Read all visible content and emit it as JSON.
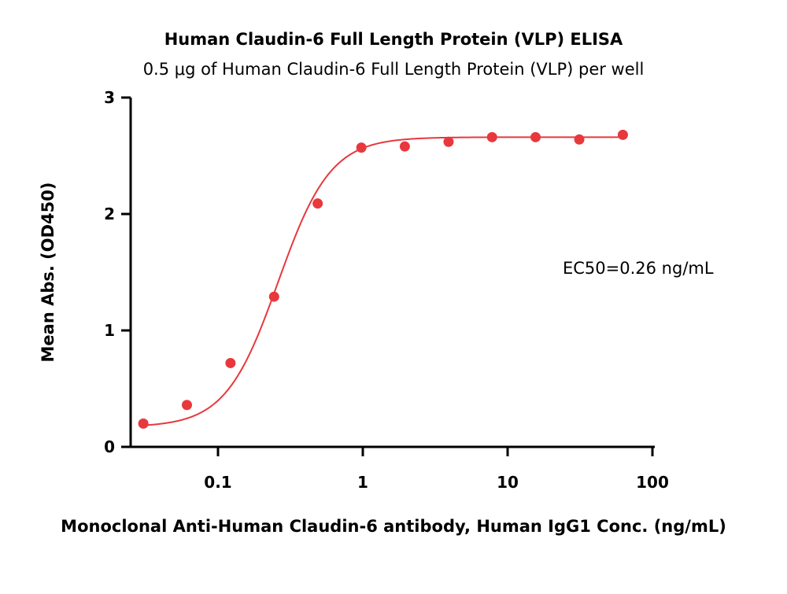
{
  "chart_data": {
    "type": "scatter",
    "title": "Human Claudin-6 Full Length Protein (VLP) ELISA",
    "subtitle": "0.5 μg of Human Claudin-6 Full Length Protein (VLP) per well",
    "xlabel": "Monoclonal Anti-Human Claudin-6 antibody, Human IgG1 Conc. (ng/mL)",
    "ylabel": "Mean Abs. (OD450)",
    "x_scale": "log",
    "xlim": [
      0.03,
      100
    ],
    "ylim": [
      0,
      3
    ],
    "x_ticks": [
      0.1,
      1,
      10,
      100
    ],
    "x_tick_labels": [
      "0.1",
      "1",
      "10",
      "100"
    ],
    "y_ticks": [
      0,
      1,
      2,
      3
    ],
    "y_tick_labels": [
      "0",
      "1",
      "2",
      "3"
    ],
    "grid": false,
    "color": "#e8383d",
    "series": [
      {
        "x": [
          0.0305,
          0.061,
          0.122,
          0.244,
          0.488,
          0.977,
          1.95,
          3.91,
          7.81,
          15.6,
          31.25,
          62.5
        ],
        "y": [
          0.2,
          0.36,
          0.72,
          1.29,
          2.09,
          2.57,
          2.58,
          2.62,
          2.66,
          2.66,
          2.64,
          2.68
        ]
      }
    ],
    "fit_curve": {
      "model": "4PL",
      "bottom": 0.17,
      "top": 2.66,
      "ec50": 0.26,
      "hill": 2.4
    },
    "annotations": [
      "EC50=0.26 ng/mL"
    ]
  }
}
